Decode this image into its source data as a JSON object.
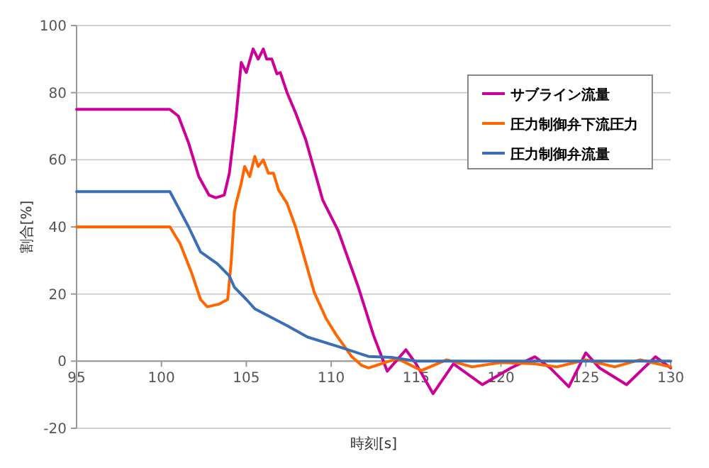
{
  "chart_data": {
    "type": "line",
    "xlabel": "時刻[s]",
    "ylabel": "割合[%]",
    "xlim": [
      95,
      130
    ],
    "xticks": [
      95,
      100,
      105,
      110,
      115,
      120,
      125,
      130
    ],
    "ylim": [
      -20,
      100
    ],
    "yticks": [
      -20,
      0,
      20,
      40,
      60,
      80,
      100
    ],
    "grid": "y",
    "legend": "top right",
    "marker": "none",
    "line_style": "solid",
    "series": [
      {
        "name": "サブライン流量",
        "color": "#cc0099",
        "x": [
          95,
          100.5,
          101,
          101.6,
          102.2,
          102.8,
          103.2,
          103.7,
          104.0,
          104.4,
          104.7,
          105.0,
          105.4,
          105.7,
          106.0,
          106.2,
          106.5,
          106.8,
          107.0,
          107.4,
          107.9,
          108.5,
          109.0,
          109.5,
          110.4,
          111.6,
          112.5,
          113.3,
          114.4,
          115.0,
          116.0,
          117.2,
          118.9,
          120.6,
          122.0,
          122.9,
          124.0,
          125.0,
          125.8,
          127.4,
          129.1,
          130
        ],
        "values": [
          75,
          75,
          73,
          65,
          55,
          49.5,
          48.7,
          49.5,
          56,
          73,
          89,
          86,
          93,
          90,
          93,
          90,
          90,
          85.6,
          86,
          80,
          74,
          66,
          57,
          48,
          39,
          22,
          7.6,
          -3,
          3.4,
          -0.8,
          -9.7,
          -0.8,
          -7,
          -2,
          1.3,
          -2,
          -7.6,
          2.5,
          -2,
          -7,
          1.3,
          -2
        ]
      },
      {
        "name": "圧力制御弁下流圧力",
        "color": "#ff6600",
        "x": [
          95,
          100.5,
          101.1,
          101.8,
          102.3,
          102.7,
          103.4,
          103.9,
          104.1,
          104.3,
          104.4,
          104.7,
          104.9,
          105.2,
          105.5,
          105.7,
          106.0,
          106.3,
          106.6,
          106.9,
          107.4,
          107.9,
          108.3,
          109.0,
          109.7,
          110.3,
          111.2,
          111.8,
          112.2,
          113.0,
          113.9,
          115.3,
          116.8,
          118.3,
          120.0,
          122.0,
          123.3,
          125.0,
          126.7,
          128.2,
          130
        ],
        "values": [
          40,
          40,
          35,
          26,
          18.4,
          16.2,
          17,
          18.4,
          29,
          44.5,
          47,
          53,
          58,
          55,
          61,
          58,
          60,
          56,
          56,
          51,
          47,
          40,
          33,
          20.5,
          12.7,
          7.8,
          1.4,
          -1.3,
          -2,
          -0.7,
          0.8,
          -2.8,
          0.4,
          -1.7,
          -0.4,
          -0.8,
          -1.7,
          0.4,
          -1.7,
          0.4,
          -1.7
        ]
      },
      {
        "name": "圧力制御弁流量",
        "color": "#3a6fb5",
        "x": [
          95,
          100.5,
          101.6,
          102.3,
          103.3,
          104.0,
          104.3,
          105.0,
          105.5,
          106.6,
          107.4,
          108.6,
          110.5,
          112.2,
          113.6,
          115.0,
          130
        ],
        "values": [
          50.5,
          50.5,
          40,
          32.6,
          29,
          25.4,
          22,
          18.4,
          15.6,
          12.7,
          10.6,
          7.2,
          4.2,
          1.4,
          1.1,
          0,
          0
        ]
      }
    ]
  }
}
